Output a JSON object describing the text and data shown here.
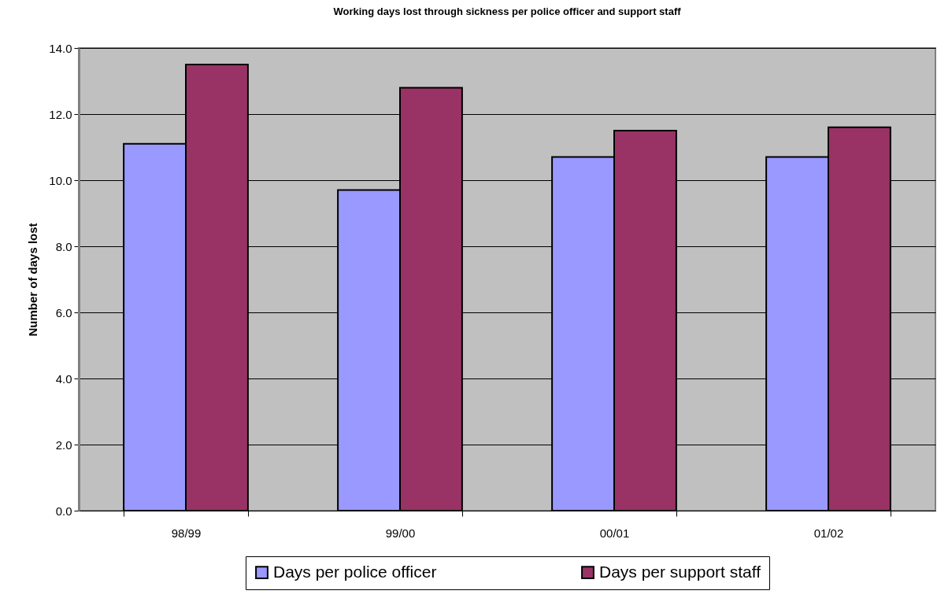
{
  "chart_data": {
    "type": "bar",
    "title": "Working days lost through sickness per police officer and support staff",
    "ylabel": "Number of days lost",
    "categories": [
      "98/99",
      "99/00",
      "00/01",
      "01/02"
    ],
    "series": [
      {
        "name": "Days per police officer",
        "color": "#9999ff",
        "values": [
          11.1,
          9.7,
          10.7,
          10.7
        ]
      },
      {
        "name": "Days per support staff",
        "color": "#993366",
        "values": [
          13.5,
          12.8,
          11.5,
          11.6
        ]
      }
    ],
    "ylim": [
      0,
      14
    ],
    "yticks": [
      {
        "value": 0,
        "label": "0.0"
      },
      {
        "value": 2,
        "label": "2.0"
      },
      {
        "value": 4,
        "label": "4.0"
      },
      {
        "value": 6,
        "label": "6.0"
      },
      {
        "value": 8,
        "label": "8.0"
      },
      {
        "value": 10,
        "label": "10.0"
      },
      {
        "value": 12,
        "label": "12.0"
      },
      {
        "value": 14,
        "label": "14.0"
      }
    ],
    "grid": "y",
    "legend": "bottom"
  }
}
